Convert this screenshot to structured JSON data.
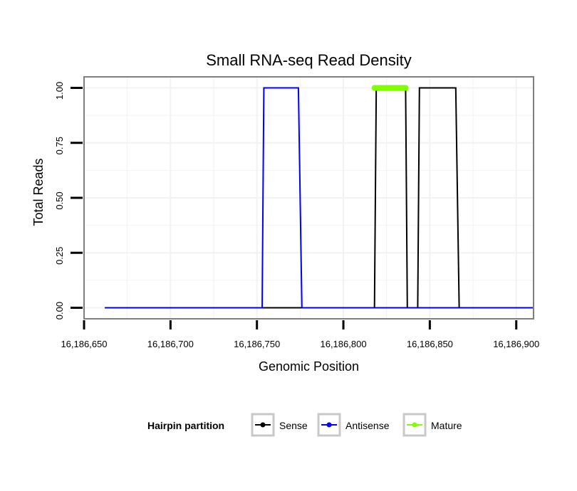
{
  "chart_data": {
    "type": "line",
    "title": "Small RNA-seq Read Density",
    "xlabel": "Genomic Position",
    "ylabel": "Total Reads",
    "xlim": [
      16186650,
      16186910
    ],
    "ylim": [
      -0.05,
      1.05
    ],
    "x_ticks": [
      16186650,
      16186700,
      16186750,
      16186800,
      16186850,
      16186900
    ],
    "x_tick_labels": [
      "16,186,650",
      "16,186,700",
      "16,186,750",
      "16,186,800",
      "16,186,850",
      "16,186,900"
    ],
    "y_ticks": [
      0,
      0.25,
      0.5,
      0.75,
      1.0
    ],
    "y_tick_labels": [
      "0.00",
      "0.25",
      "0.50",
      "0.75",
      "1.00"
    ],
    "grid": true,
    "legend": {
      "title": "Hairpin partition",
      "position": "bottom",
      "entries": [
        "Sense",
        "Antisense",
        "Mature"
      ]
    },
    "series": [
      {
        "name": "Sense",
        "color": "#000000",
        "x": [
          16186662,
          16186818,
          16186819,
          16186836,
          16186837,
          16186843,
          16186844,
          16186865,
          16186867,
          16186910
        ],
        "y": [
          0,
          0,
          1,
          1,
          0,
          0,
          1,
          1,
          0,
          0
        ]
      },
      {
        "name": "Antisense",
        "color": "#0000ff",
        "x": [
          16186662,
          16186753,
          16186754,
          16186774,
          16186776,
          16186910
        ],
        "y": [
          0,
          0,
          1,
          1,
          0,
          0
        ]
      },
      {
        "name": "Mature",
        "color": "#7fff00",
        "x": [
          16186818,
          16186836
        ],
        "y": [
          1,
          1
        ]
      }
    ]
  }
}
